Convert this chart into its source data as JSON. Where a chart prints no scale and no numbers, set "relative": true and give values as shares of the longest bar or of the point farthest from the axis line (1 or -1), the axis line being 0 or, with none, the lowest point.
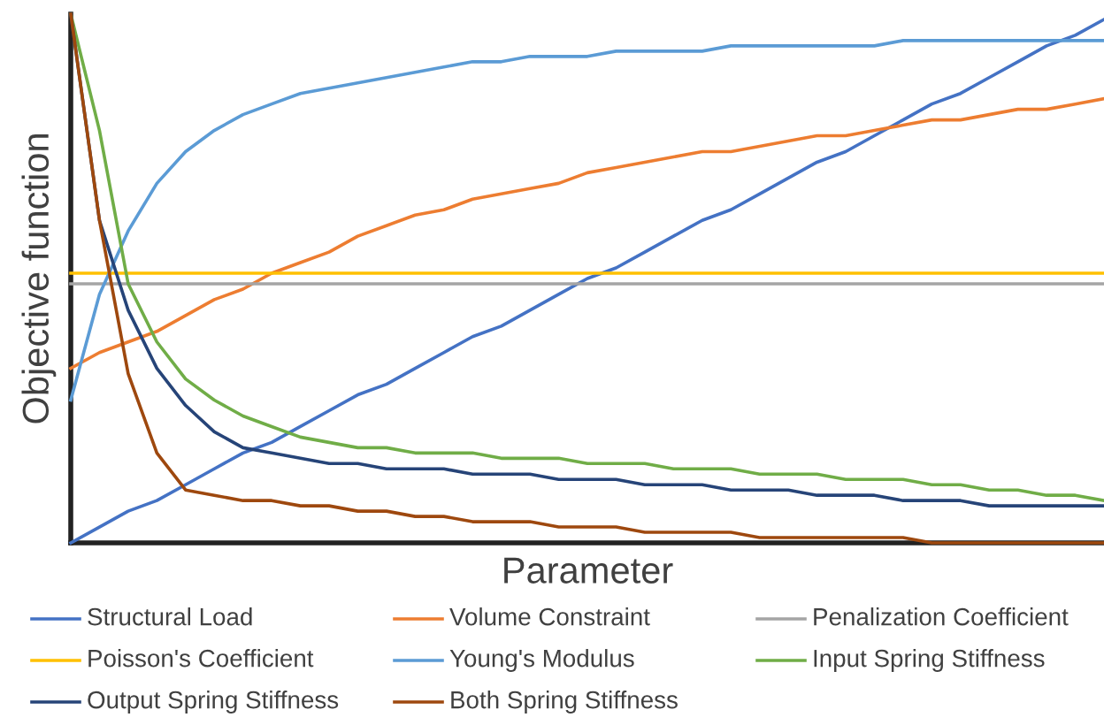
{
  "chart_data": {
    "type": "line",
    "relative": true,
    "xlabel": "Parameter",
    "ylabel": "Objective function",
    "legend": "bottom",
    "grid": false,
    "marker": "none",
    "line_style": "solid",
    "categories": [
      null,
      null,
      null,
      null,
      null,
      null,
      null,
      null,
      null,
      null,
      null,
      null,
      null,
      null,
      null,
      null,
      null,
      null,
      null,
      null,
      null,
      null,
      null,
      null,
      null,
      null,
      null,
      null,
      null,
      null,
      null,
      null,
      null,
      null,
      null,
      null,
      null
    ],
    "series": [
      {
        "name": "Structural Load",
        "color": "#4472c4",
        "values": [
          0,
          0.03,
          0.06,
          0.08,
          0.11,
          0.14,
          0.17,
          0.19,
          0.22,
          0.25,
          0.28,
          0.3,
          0.33,
          0.36,
          0.39,
          0.41,
          0.44,
          0.47,
          0.5,
          0.52,
          0.55,
          0.58,
          0.61,
          0.63,
          0.66,
          0.69,
          0.72,
          0.74,
          0.77,
          0.8,
          0.83,
          0.85,
          0.88,
          0.91,
          0.94,
          0.96,
          0.99
        ]
      },
      {
        "name": "Volume Constraint",
        "color": "#ed7d31",
        "values": [
          0.33,
          0.36,
          0.38,
          0.4,
          0.43,
          0.46,
          0.48,
          0.51,
          0.53,
          0.55,
          0.58,
          0.6,
          0.62,
          0.63,
          0.65,
          0.66,
          0.67,
          0.68,
          0.7,
          0.71,
          0.72,
          0.73,
          0.74,
          0.74,
          0.75,
          0.76,
          0.77,
          0.77,
          0.78,
          0.79,
          0.8,
          0.8,
          0.81,
          0.82,
          0.82,
          0.83,
          0.84
        ]
      },
      {
        "name": "Penalization Coefficient",
        "color": "#a5a5a5",
        "values": [
          0.49,
          0.49,
          0.49,
          0.49,
          0.49,
          0.49,
          0.49,
          0.49,
          0.49,
          0.49,
          0.49,
          0.49,
          0.49,
          0.49,
          0.49,
          0.49,
          0.49,
          0.49,
          0.49,
          0.49,
          0.49,
          0.49,
          0.49,
          0.49,
          0.49,
          0.49,
          0.49,
          0.49,
          0.49,
          0.49,
          0.49,
          0.49,
          0.49,
          0.49,
          0.49,
          0.49,
          0.49
        ]
      },
      {
        "name": "Poisson's Coefficient",
        "color": "#ffc000",
        "values": [
          0.51,
          0.51,
          0.51,
          0.51,
          0.51,
          0.51,
          0.51,
          0.51,
          0.51,
          0.51,
          0.51,
          0.51,
          0.51,
          0.51,
          0.51,
          0.51,
          0.51,
          0.51,
          0.51,
          0.51,
          0.51,
          0.51,
          0.51,
          0.51,
          0.51,
          0.51,
          0.51,
          0.51,
          0.51,
          0.51,
          0.51,
          0.51,
          0.51,
          0.51,
          0.51,
          0.51,
          0.51
        ]
      },
      {
        "name": "Young's Modulus",
        "color": "#5b9bd5",
        "values": [
          0.27,
          0.47,
          0.59,
          0.68,
          0.74,
          0.78,
          0.81,
          0.83,
          0.85,
          0.86,
          0.87,
          0.88,
          0.89,
          0.9,
          0.91,
          0.91,
          0.92,
          0.92,
          0.92,
          0.93,
          0.93,
          0.93,
          0.93,
          0.94,
          0.94,
          0.94,
          0.94,
          0.94,
          0.94,
          0.95,
          0.95,
          0.95,
          0.95,
          0.95,
          0.95,
          0.95,
          0.95
        ]
      },
      {
        "name": "Input Spring Stiffness",
        "color": "#70ad47",
        "values": [
          1.0,
          0.78,
          0.49,
          0.38,
          0.31,
          0.27,
          0.24,
          0.22,
          0.2,
          0.19,
          0.18,
          0.18,
          0.17,
          0.17,
          0.17,
          0.16,
          0.16,
          0.16,
          0.15,
          0.15,
          0.15,
          0.14,
          0.14,
          0.14,
          0.13,
          0.13,
          0.13,
          0.12,
          0.12,
          0.12,
          0.11,
          0.11,
          0.1,
          0.1,
          0.09,
          0.09,
          0.08
        ]
      },
      {
        "name": "Output Spring Stiffness",
        "color": "#264478",
        "values": [
          1.0,
          0.61,
          0.44,
          0.33,
          0.26,
          0.21,
          0.18,
          0.17,
          0.16,
          0.15,
          0.15,
          0.14,
          0.14,
          0.14,
          0.13,
          0.13,
          0.13,
          0.12,
          0.12,
          0.12,
          0.11,
          0.11,
          0.11,
          0.1,
          0.1,
          0.1,
          0.09,
          0.09,
          0.09,
          0.08,
          0.08,
          0.08,
          0.07,
          0.07,
          0.07,
          0.07,
          0.07
        ]
      },
      {
        "name": "Both Spring Stiffness",
        "color": "#9e480e",
        "values": [
          1.0,
          0.61,
          0.32,
          0.17,
          0.1,
          0.09,
          0.08,
          0.08,
          0.07,
          0.07,
          0.06,
          0.06,
          0.05,
          0.05,
          0.04,
          0.04,
          0.04,
          0.03,
          0.03,
          0.03,
          0.02,
          0.02,
          0.02,
          0.02,
          0.01,
          0.01,
          0.01,
          0.01,
          0.01,
          0.01,
          0,
          0,
          0,
          0,
          0,
          0,
          0
        ]
      }
    ]
  }
}
